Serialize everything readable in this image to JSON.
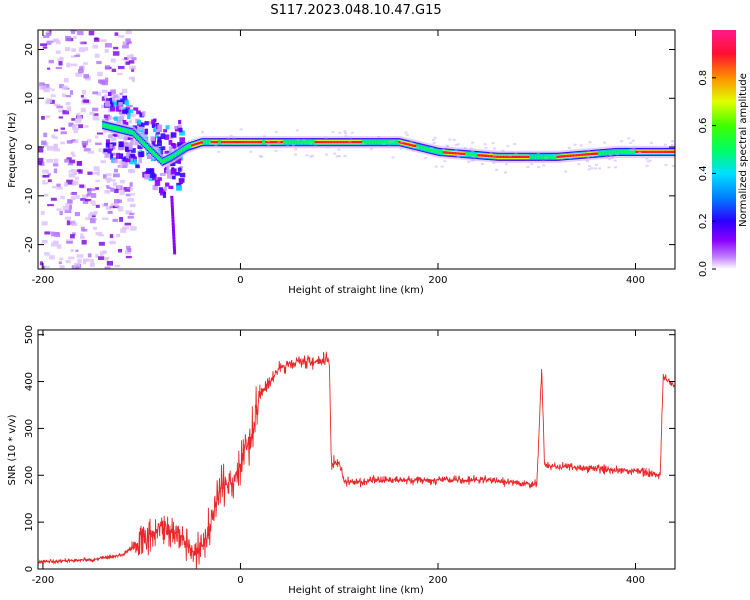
{
  "title": "S117.2023.048.10.47.G15",
  "colors": {
    "snr_line": "#e8282b",
    "colormap": [
      "#ffffff",
      "#9400d3",
      "#3a00ff",
      "#00c8ff",
      "#00ff40",
      "#e0ff00",
      "#ff8000",
      "#ff0033",
      "#ff1a8c"
    ]
  },
  "chart_data": [
    {
      "type": "heatmap",
      "xlabel": "Height of straight line (km)",
      "ylabel": "Frequency (Hz)",
      "xlim": [
        -205,
        440
      ],
      "ylim": [
        -25,
        24
      ],
      "x_ticks": [
        -200,
        0,
        200,
        400
      ],
      "y_ticks": [
        -20,
        -10,
        0,
        10,
        20
      ],
      "colorbar": {
        "label": "Normalized spectral amplitude",
        "range": [
          0,
          1
        ],
        "ticks": [
          0.0,
          0.2,
          0.4,
          0.6,
          0.8
        ]
      },
      "ridge": {
        "x": [
          -150,
          -130,
          -110,
          -95,
          -80,
          -70,
          -55,
          -40,
          -20,
          0,
          40,
          80,
          120,
          160,
          200,
          260,
          320,
          380,
          440
        ],
        "freq": [
          5,
          4,
          3,
          0,
          -3,
          -2,
          0,
          1,
          1,
          1,
          1,
          1,
          1,
          1,
          -1,
          -2,
          -2,
          -1,
          -1
        ]
      }
    },
    {
      "type": "line",
      "xlabel": "Height of straight line (km)",
      "ylabel": "SNR (10 * v/v)",
      "xlim": [
        -205,
        440
      ],
      "ylim": [
        0,
        510
      ],
      "x_ticks": [
        -200,
        0,
        200,
        400
      ],
      "y_ticks": [
        0,
        100,
        200,
        300,
        400,
        500
      ],
      "series": [
        {
          "x": [
            -205,
            -150,
            -120,
            -100,
            -80,
            -60,
            -45,
            -35,
            -30,
            -20,
            -10,
            0,
            10,
            20,
            40,
            60,
            80,
            90,
            92,
            95,
            100,
            105,
            110,
            150,
            200,
            250,
            300,
            305,
            308,
            310,
            350,
            400,
            425,
            428,
            440
          ],
          "y": [
            15,
            20,
            30,
            60,
            90,
            70,
            30,
            60,
            100,
            170,
            190,
            220,
            280,
            370,
            430,
            445,
            440,
            450,
            220,
            225,
            225,
            190,
            185,
            190,
            190,
            190,
            180,
            425,
            220,
            220,
            215,
            210,
            200,
            410,
            390
          ]
        }
      ]
    }
  ]
}
